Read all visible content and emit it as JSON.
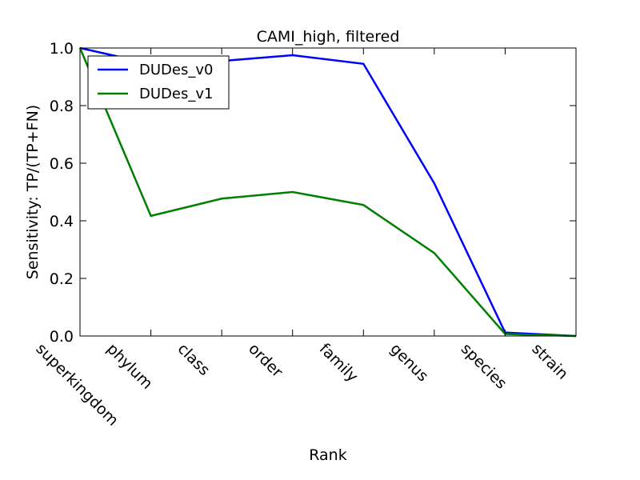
{
  "chart_data": {
    "type": "line",
    "title": "CAMI_high, filtered",
    "xlabel": "Rank",
    "ylabel": "Sensitivity: TP/(TP+FN)",
    "categories": [
      "superkingdom",
      "phylum",
      "class",
      "order",
      "family",
      "genus",
      "species",
      "strain"
    ],
    "ylim": [
      0.0,
      1.0
    ],
    "yticks": [
      "0.0",
      "0.2",
      "0.4",
      "0.6",
      "0.8",
      "1.0"
    ],
    "grid": false,
    "legend": "top-left",
    "series": [
      {
        "name": "DUDes_v0",
        "color": "#0000ff",
        "values": [
          1.0,
          0.945,
          0.955,
          0.975,
          0.945,
          0.53,
          0.012,
          0.0
        ]
      },
      {
        "name": "DUDes_v1",
        "color": "#008000",
        "values": [
          1.0,
          0.417,
          0.477,
          0.5,
          0.455,
          0.288,
          0.007,
          0.0
        ]
      }
    ]
  }
}
